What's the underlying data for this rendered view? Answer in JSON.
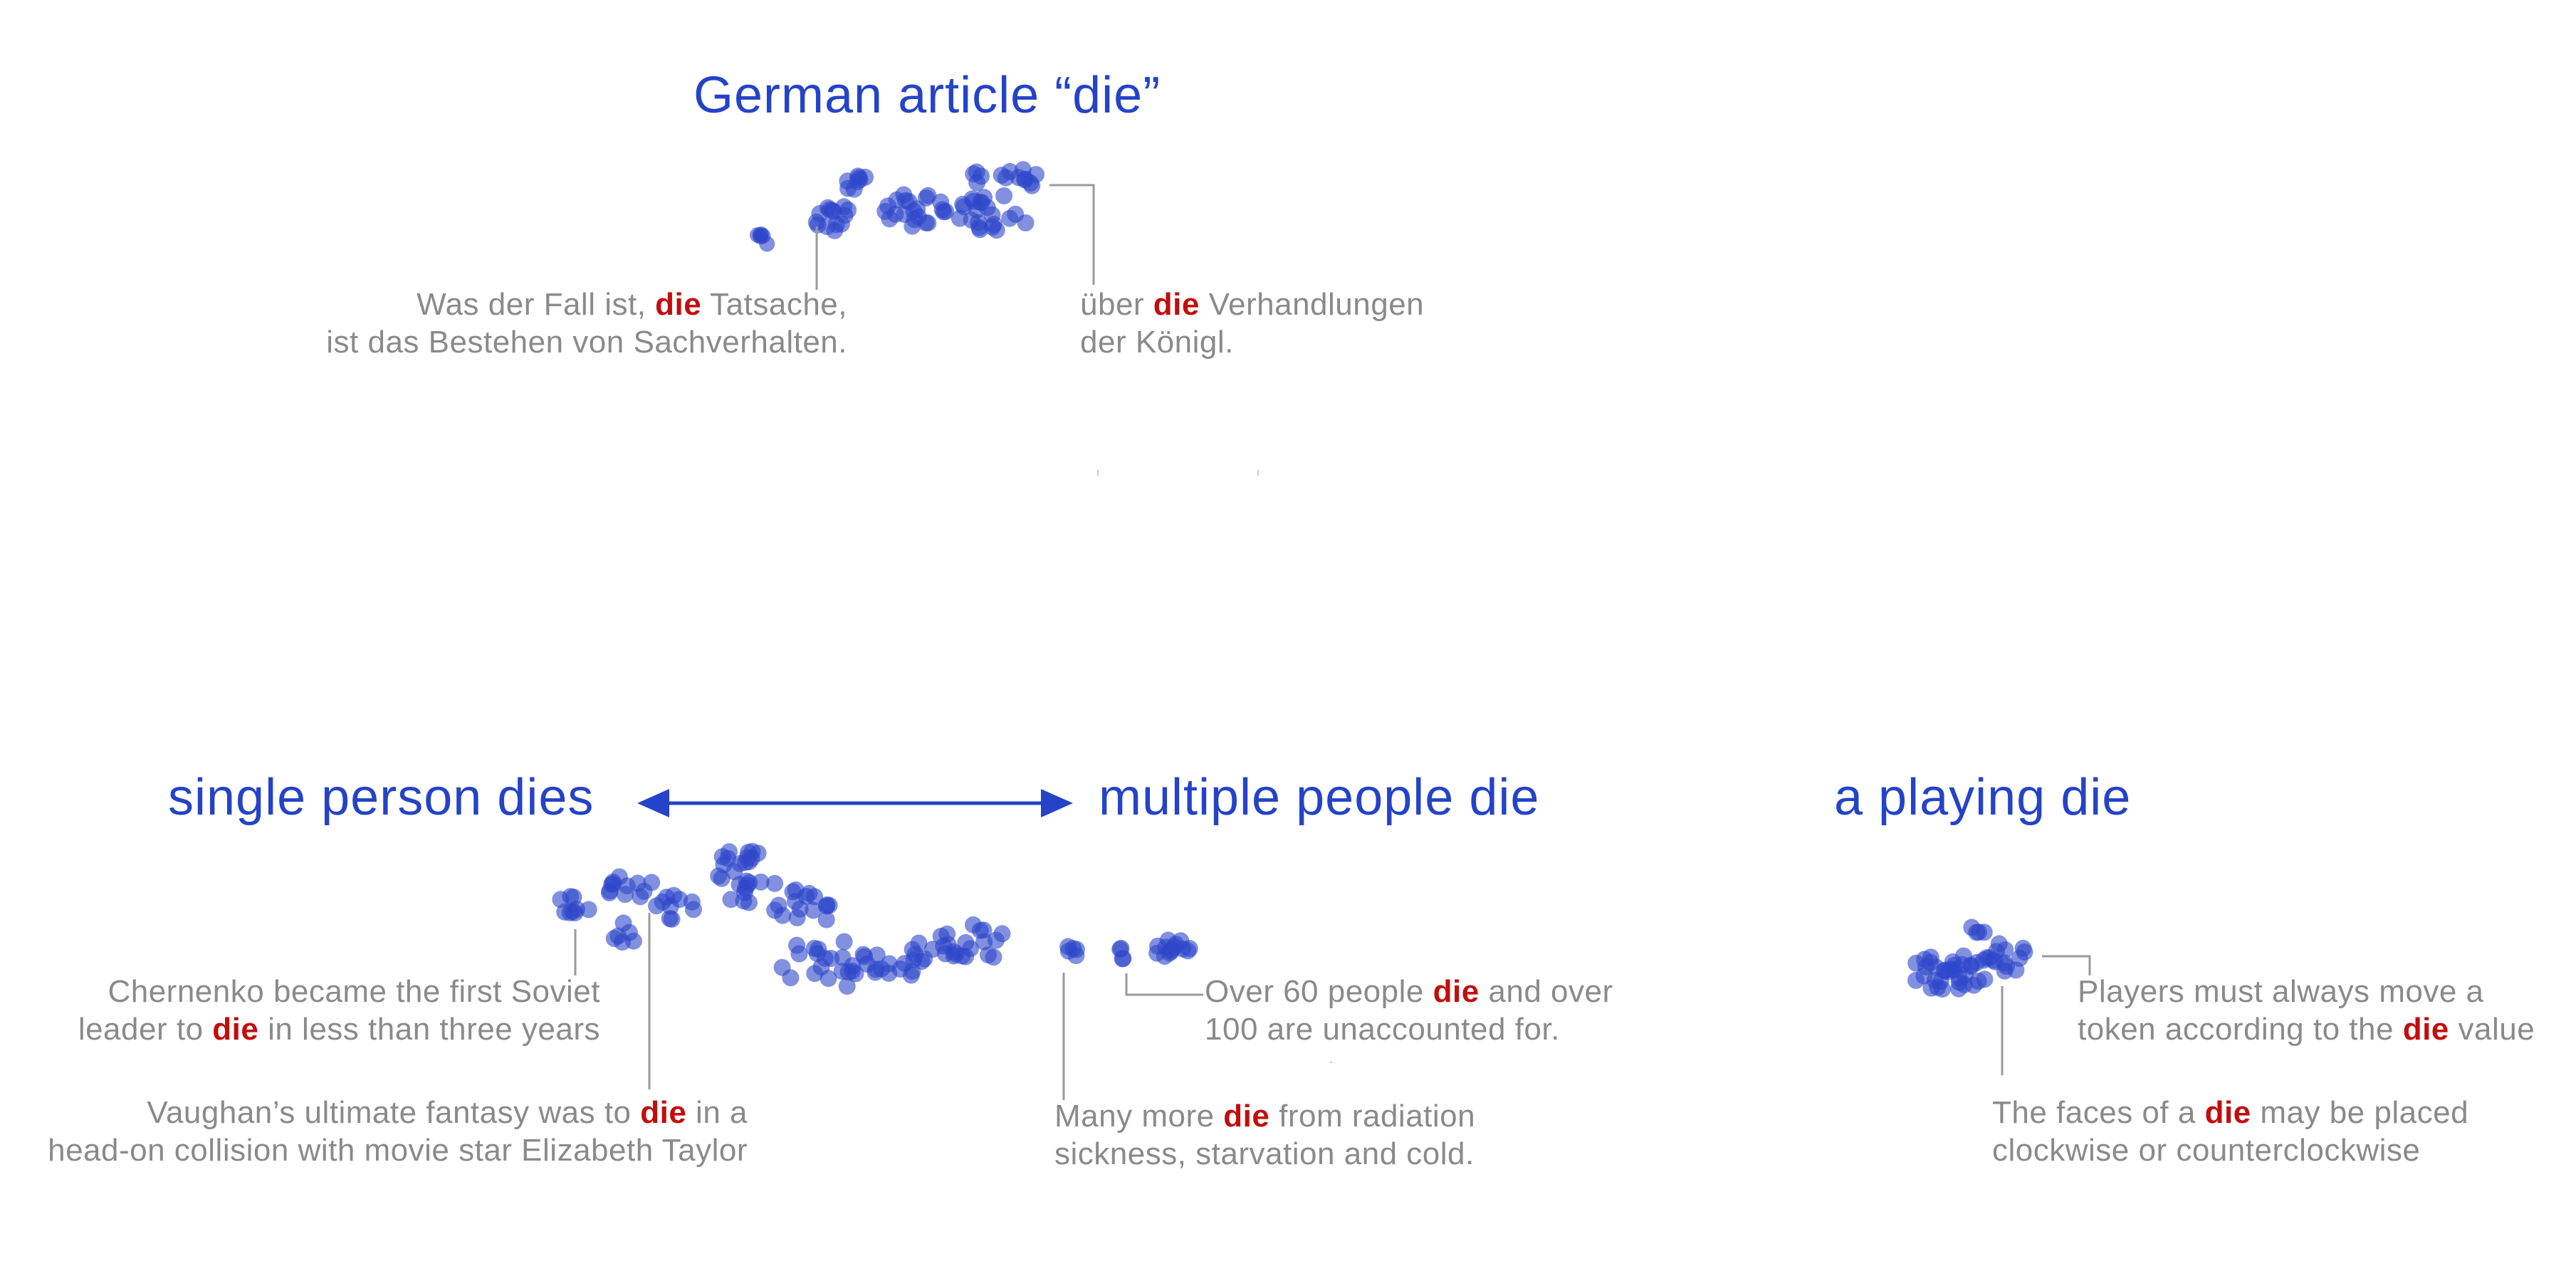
{
  "colors": {
    "heading": "#2443c8",
    "dot": "#2d46c9",
    "caption": "#8a8a8a",
    "keyword": "#c20d0d",
    "leader": "#9a9a9a"
  },
  "headings": {
    "german": "German article “die”",
    "single": "single person dies",
    "multiple": "multiple people die",
    "playing": "a playing die"
  },
  "arrow": {
    "direction": "bidirectional",
    "from": "single person dies",
    "to": "multiple people die"
  },
  "captions": {
    "german_left": [
      [
        {
          "t": "Was der Fall ist, "
        },
        {
          "t": "die",
          "kw": true
        },
        {
          "t": " Tatsache,"
        }
      ],
      [
        {
          "t": "ist das Bestehen von Sachverhalten."
        }
      ]
    ],
    "german_right": [
      [
        {
          "t": "über "
        },
        {
          "t": "die",
          "kw": true
        },
        {
          "t": " Verhandlungen"
        }
      ],
      [
        {
          "t": "der Königl."
        }
      ]
    ],
    "chernenko": [
      [
        {
          "t": "Chernenko became the first Soviet"
        }
      ],
      [
        {
          "t": "leader to "
        },
        {
          "t": "die",
          "kw": true
        },
        {
          "t": " in less than three years"
        }
      ]
    ],
    "vaughan": [
      [
        {
          "t": "Vaughan’s ultimate fantasy was to "
        },
        {
          "t": "die",
          "kw": true
        },
        {
          "t": " in a"
        }
      ],
      [
        {
          "t": "head-on collision with movie star Elizabeth Taylor"
        }
      ]
    ],
    "over60": [
      [
        {
          "t": "Over 60 people "
        },
        {
          "t": "die",
          "kw": true
        },
        {
          "t": " and over"
        }
      ],
      [
        {
          "t": "100 are unaccounted for."
        }
      ]
    ],
    "manymore": [
      [
        {
          "t": "Many more "
        },
        {
          "t": "die",
          "kw": true
        },
        {
          "t": " from radiation"
        }
      ],
      [
        {
          "t": "sickness, starvation and cold."
        }
      ]
    ],
    "players": [
      [
        {
          "t": "Players must always move a"
        }
      ],
      [
        {
          "t": "token according to the "
        },
        {
          "t": "die",
          "kw": true
        },
        {
          "t": " value"
        }
      ]
    ],
    "faces": [
      [
        {
          "t": "The faces of a "
        },
        {
          "t": "die",
          "kw": true
        },
        {
          "t": " may be placed"
        }
      ],
      [
        {
          "t": "clockwise or counterclockwise"
        }
      ]
    ]
  }
}
